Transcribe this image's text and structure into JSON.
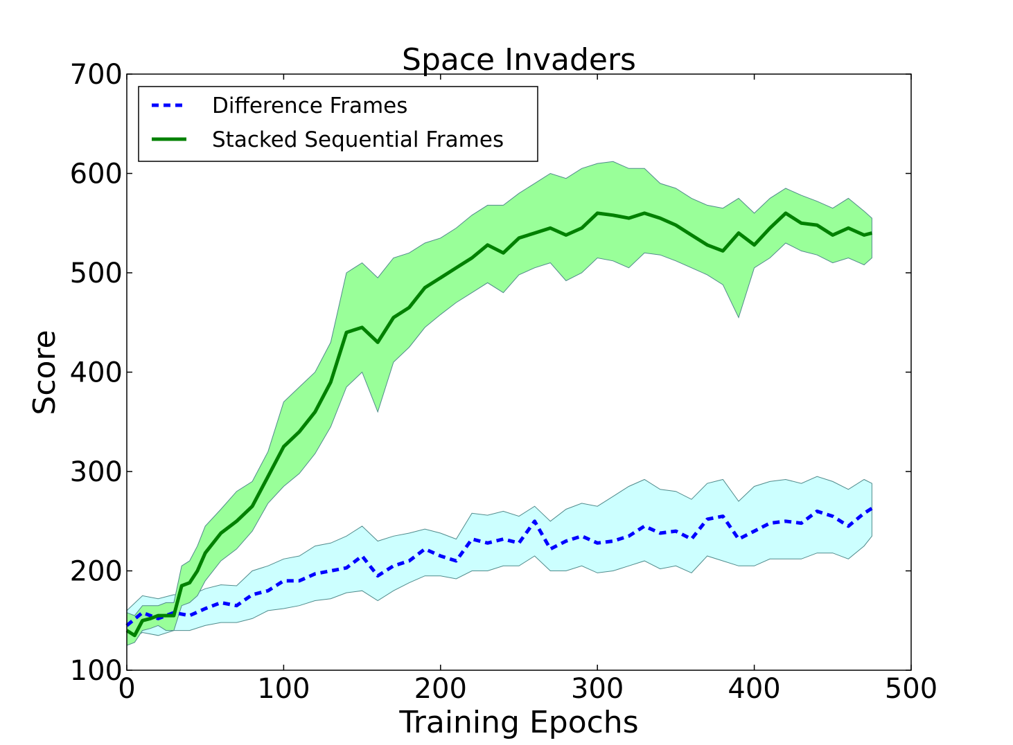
{
  "chart_data": {
    "type": "line",
    "title": "Space Invaders",
    "xlabel": "Training Epochs",
    "ylabel": "Score",
    "xlim": [
      0,
      500
    ],
    "ylim": [
      100,
      700
    ],
    "xticks": [
      0,
      100,
      200,
      300,
      400,
      500
    ],
    "yticks": [
      100,
      200,
      300,
      400,
      500,
      600,
      700
    ],
    "grid": false,
    "legend_position": "top-left",
    "series": [
      {
        "name": "Difference Frames",
        "color": "#0000ff",
        "line_style": "dashed",
        "band_color": "#ccffff",
        "x": [
          0,
          10,
          20,
          30,
          40,
          50,
          60,
          70,
          80,
          90,
          100,
          110,
          120,
          130,
          140,
          150,
          160,
          170,
          180,
          190,
          200,
          210,
          220,
          230,
          240,
          250,
          260,
          270,
          280,
          290,
          300,
          310,
          320,
          330,
          340,
          350,
          360,
          370,
          380,
          390,
          400,
          410,
          420,
          430,
          440,
          450,
          460,
          470,
          475
        ],
        "mean": [
          145,
          158,
          152,
          158,
          155,
          162,
          168,
          165,
          176,
          180,
          190,
          190,
          197,
          200,
          203,
          215,
          195,
          205,
          210,
          222,
          215,
          210,
          232,
          228,
          232,
          228,
          250,
          222,
          230,
          235,
          228,
          230,
          235,
          245,
          238,
          240,
          232,
          252,
          255,
          232,
          240,
          248,
          250,
          248,
          260,
          255,
          245,
          258,
          263
        ],
        "lower": [
          130,
          138,
          135,
          140,
          140,
          145,
          148,
          148,
          152,
          160,
          162,
          165,
          170,
          172,
          178,
          180,
          170,
          180,
          188,
          195,
          195,
          192,
          200,
          200,
          205,
          205,
          215,
          200,
          200,
          205,
          198,
          200,
          205,
          210,
          202,
          205,
          198,
          215,
          210,
          205,
          205,
          212,
          212,
          212,
          218,
          218,
          212,
          225,
          235
        ],
        "upper": [
          160,
          175,
          172,
          176,
          175,
          182,
          186,
          185,
          200,
          205,
          212,
          215,
          225,
          228,
          235,
          245,
          230,
          235,
          238,
          242,
          238,
          232,
          258,
          256,
          260,
          255,
          265,
          250,
          262,
          268,
          265,
          275,
          285,
          292,
          282,
          280,
          272,
          288,
          292,
          270,
          285,
          290,
          292,
          288,
          295,
          290,
          282,
          292,
          288
        ]
      },
      {
        "name": "Stacked Sequential Frames",
        "color": "#008000",
        "line_style": "solid",
        "band_color": "#99ff99",
        "x": [
          0,
          5,
          10,
          15,
          20,
          25,
          30,
          35,
          40,
          45,
          50,
          60,
          70,
          80,
          90,
          100,
          110,
          120,
          130,
          140,
          150,
          160,
          170,
          180,
          190,
          200,
          210,
          220,
          230,
          240,
          250,
          260,
          270,
          280,
          290,
          300,
          310,
          320,
          330,
          340,
          350,
          360,
          370,
          380,
          390,
          400,
          410,
          420,
          430,
          440,
          450,
          460,
          470,
          475
        ],
        "mean": [
          140,
          135,
          150,
          152,
          155,
          155,
          155,
          185,
          188,
          200,
          218,
          238,
          250,
          265,
          295,
          325,
          340,
          360,
          390,
          440,
          445,
          430,
          455,
          465,
          485,
          495,
          505,
          515,
          528,
          520,
          535,
          540,
          545,
          538,
          545,
          560,
          558,
          555,
          560,
          555,
          548,
          538,
          528,
          522,
          540,
          528,
          545,
          560,
          550,
          548,
          538,
          545,
          538,
          540
        ],
        "lower": [
          125,
          128,
          140,
          142,
          145,
          140,
          140,
          165,
          168,
          175,
          190,
          210,
          222,
          240,
          268,
          285,
          298,
          318,
          345,
          385,
          400,
          360,
          410,
          425,
          445,
          458,
          470,
          480,
          490,
          480,
          498,
          505,
          510,
          492,
          500,
          515,
          512,
          505,
          520,
          518,
          512,
          505,
          498,
          488,
          455,
          505,
          515,
          530,
          522,
          518,
          510,
          515,
          508,
          515
        ],
        "upper": [
          158,
          155,
          165,
          165,
          165,
          168,
          168,
          205,
          210,
          225,
          245,
          262,
          280,
          290,
          320,
          370,
          385,
          400,
          430,
          500,
          510,
          495,
          515,
          520,
          530,
          535,
          545,
          558,
          568,
          568,
          580,
          590,
          600,
          595,
          605,
          610,
          612,
          605,
          605,
          590,
          585,
          575,
          568,
          565,
          575,
          560,
          575,
          585,
          578,
          572,
          565,
          575,
          562,
          555
        ]
      }
    ]
  }
}
